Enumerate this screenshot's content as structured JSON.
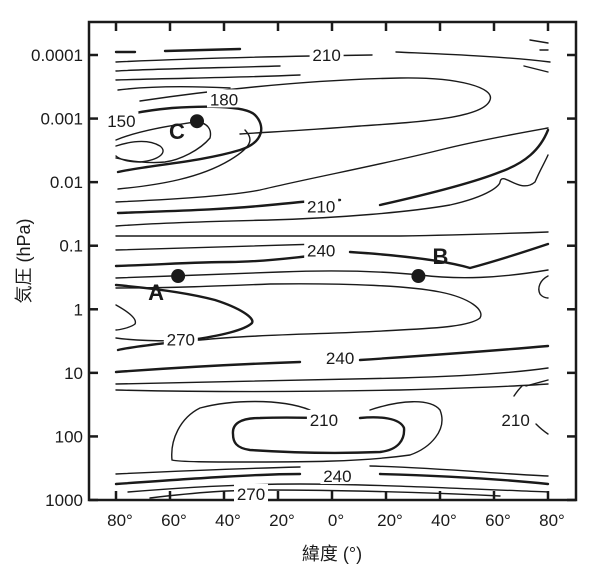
{
  "chart_data": {
    "type": "contour",
    "xlabel": "緯度 (°)",
    "ylabel": "気圧 (hPa)",
    "x_range": [
      -90,
      90
    ],
    "y_scale": "log",
    "y_range": [
      1000,
      0.0001
    ],
    "x_ticks": [
      {
        "value": -80,
        "label": "80°"
      },
      {
        "value": -60,
        "label": "60°"
      },
      {
        "value": -40,
        "label": "40°"
      },
      {
        "value": -20,
        "label": "20°"
      },
      {
        "value": 0,
        "label": "0°"
      },
      {
        "value": 20,
        "label": "20°"
      },
      {
        "value": 40,
        "label": "40°"
      },
      {
        "value": 60,
        "label": "60°"
      },
      {
        "value": 80,
        "label": "80°"
      }
    ],
    "y_ticks": [
      {
        "value": 0.0001,
        "label": "0.0001"
      },
      {
        "value": 0.001,
        "label": "0.001"
      },
      {
        "value": 0.01,
        "label": "0.01"
      },
      {
        "value": 0.1,
        "label": "0.1"
      },
      {
        "value": 1,
        "label": "1"
      },
      {
        "value": 10,
        "label": "10"
      },
      {
        "value": 100,
        "label": "100"
      },
      {
        "value": 1000,
        "label": "1000"
      }
    ],
    "contour_labels": [
      {
        "text": "210",
        "lat": -2,
        "p": 0.0001
      },
      {
        "text": "180",
        "lat": -40,
        "p": 0.0005
      },
      {
        "text": "150",
        "lat": -78,
        "p": 0.0011
      },
      {
        "text": "210",
        "lat": -4,
        "p": 0.024
      },
      {
        "text": "240",
        "lat": -4,
        "p": 0.12
      },
      {
        "text": "270",
        "lat": -56,
        "p": 3.0
      },
      {
        "text": "240",
        "lat": 3,
        "p": 5.8
      },
      {
        "text": "210",
        "lat": 68,
        "p": 55
      },
      {
        "text": "210",
        "lat": -3,
        "p": 55
      },
      {
        "text": "240",
        "lat": 2,
        "p": 420
      },
      {
        "text": "270",
        "lat": -30,
        "p": 800
      }
    ],
    "points": [
      {
        "label": "A",
        "lat": -57,
        "p": 0.3
      },
      {
        "label": "B",
        "lat": 32,
        "p": 0.3
      },
      {
        "label": "C",
        "lat": -50,
        "p": 0.0011
      }
    ]
  }
}
